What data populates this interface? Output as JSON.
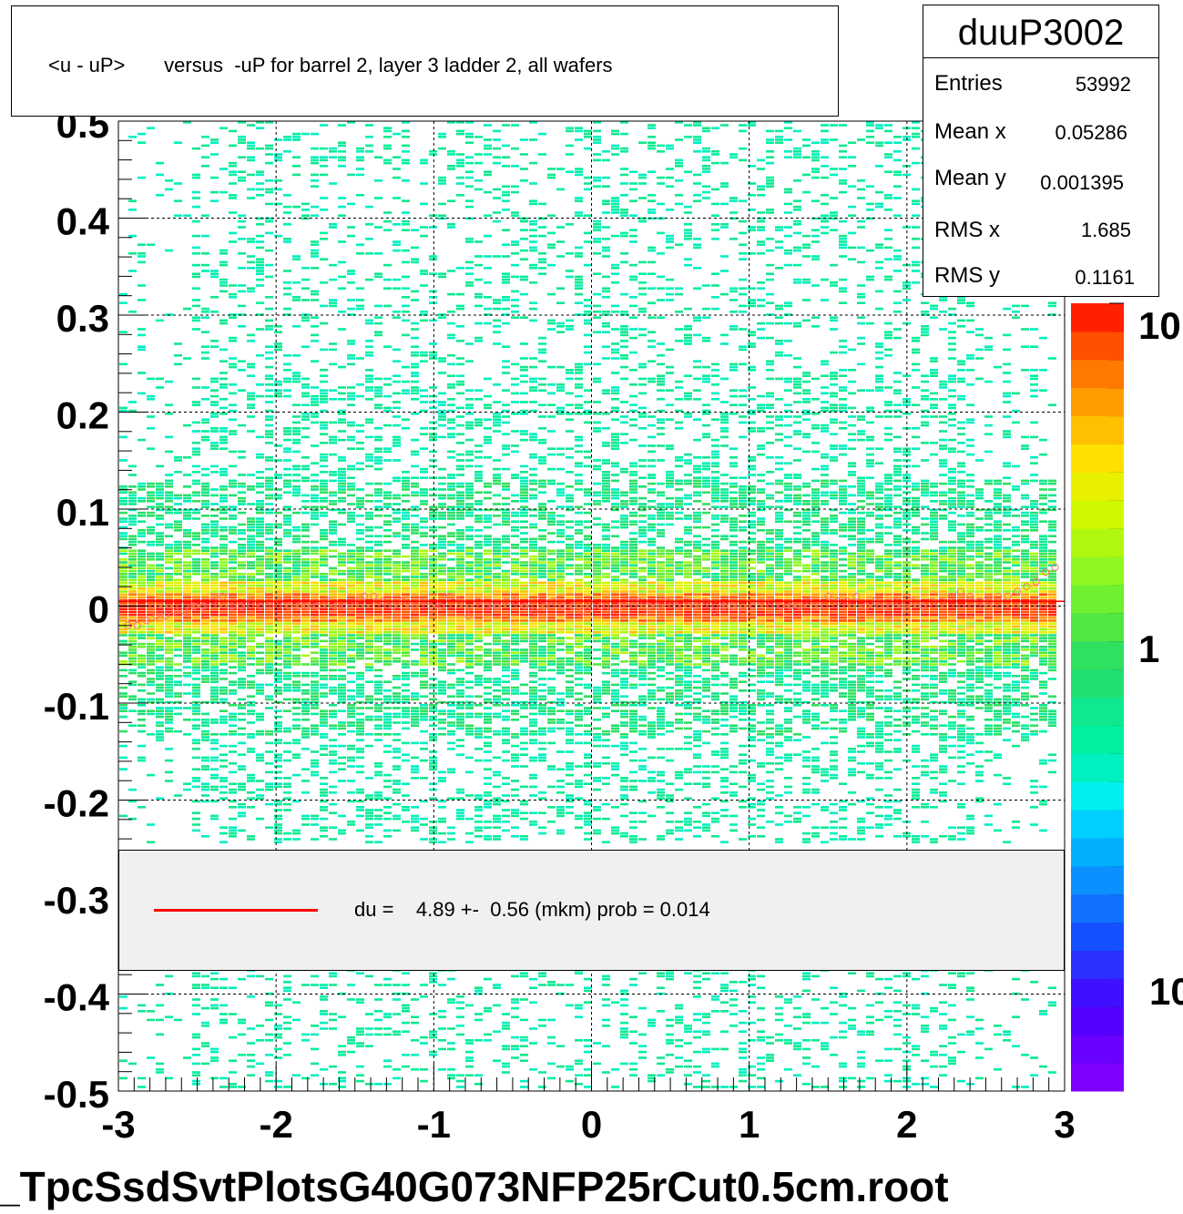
{
  "title": "<u - uP>       versus  -uP for barrel 2, layer 3 ladder 2, all wafers",
  "stats": {
    "name": "duuP3002",
    "rows": [
      {
        "label": "Entries",
        "value": "53992"
      },
      {
        "label": "Mean x",
        "value": "0.05286"
      },
      {
        "label": "Mean y",
        "value": "0.001395"
      },
      {
        "label": "RMS x",
        "value": "1.685"
      },
      {
        "label": "RMS y",
        "value": "0.1161"
      }
    ]
  },
  "legend": {
    "line_color": "#ff0000",
    "text": "du =    4.89 +-  0.56 (mkm) prob = 0.014"
  },
  "footer": "_TpcSsdSvtPlotsG40G073NFP25rCut0.5cm.root",
  "colors": {
    "fit_line": "#ff0000",
    "grid": "#000000",
    "legend_bg": "#f0f0f0",
    "palette": [
      "#7f00ff",
      "#6a00ff",
      "#5500ff",
      "#3f10ff",
      "#2a30ff",
      "#1550ff",
      "#1070ff",
      "#0a90ff",
      "#00b0ff",
      "#00d0ff",
      "#00f0f0",
      "#00f0c0",
      "#00f0a0",
      "#10e890",
      "#20e070",
      "#30e060",
      "#50e840",
      "#70f030",
      "#90f820",
      "#b0f810",
      "#d0f800",
      "#e8f000",
      "#ffe000",
      "#ffc000",
      "#ff9c00",
      "#ff7800",
      "#ff5000",
      "#ff2000"
    ]
  },
  "chart_data": {
    "type": "heatmap",
    "title": "<u - uP>       versus  -uP for barrel 2, layer 3 ladder 2, all wafers",
    "xlim": [
      -3,
      3
    ],
    "ylim": [
      -0.5,
      0.5
    ],
    "xticks": [
      "-3",
      "-2",
      "-1",
      "0",
      "1",
      "2",
      "3"
    ],
    "xtick_values": [
      -3,
      -2,
      -1,
      0,
      1,
      2,
      3
    ],
    "yticks": [
      "-0.5",
      "-0.4",
      "-0.3",
      "-0.2",
      "-0.1",
      "0",
      "0.1",
      "0.2",
      "0.3",
      "0.4",
      "0.5"
    ],
    "ytick_values": [
      -0.5,
      -0.4,
      -0.3,
      -0.2,
      -0.1,
      0,
      0.1,
      0.2,
      0.3,
      0.4,
      0.5
    ],
    "grid": true,
    "colorbar": {
      "scale": "log",
      "labels": [
        "10",
        "1",
        "10"
      ],
      "label_values": [
        10,
        1,
        0.1
      ]
    },
    "band": {
      "center": 0.0,
      "core_halfwidth": 0.015,
      "halo_halfwidth": 0.06
    },
    "profile_points": {
      "x": [
        -2.94,
        -2.88,
        -2.82,
        -2.76,
        -2.7,
        -2.64,
        -2.58,
        -2.52,
        -2.46,
        -2.4,
        -2.34,
        -2.28,
        -2.22,
        -2.16,
        -2.1,
        -2.04,
        -1.98,
        -1.92,
        -1.86,
        -1.8,
        -1.74,
        -1.68,
        -1.62,
        -1.56,
        -1.5,
        -1.44,
        -1.38,
        -1.32,
        -1.26,
        -1.2,
        -1.14,
        -1.08,
        -1.02,
        -0.96,
        -0.9,
        -0.84,
        -0.78,
        -0.72,
        -0.66,
        -0.6,
        -0.54,
        -0.48,
        -0.42,
        -0.36,
        -0.3,
        -0.24,
        -0.18,
        -0.12,
        -0.06,
        0.0,
        0.06,
        0.12,
        0.18,
        0.24,
        0.3,
        0.36,
        0.42,
        0.48,
        0.54,
        0.6,
        0.66,
        0.72,
        0.78,
        0.84,
        0.9,
        0.96,
        1.02,
        1.08,
        1.14,
        1.2,
        1.26,
        1.32,
        1.38,
        1.44,
        1.5,
        1.56,
        1.62,
        1.68,
        1.74,
        1.8,
        1.86,
        1.92,
        1.98,
        2.04,
        2.1,
        2.16,
        2.22,
        2.28,
        2.34,
        2.4,
        2.46,
        2.52,
        2.58,
        2.64,
        2.7,
        2.76,
        2.82,
        2.88,
        2.94
      ],
      "y": [
        -0.02,
        -0.02,
        -0.015,
        -0.01,
        -0.01,
        -0.005,
        -0.005,
        0.0,
        0.0,
        0.005,
        0.01,
        0.0,
        0.0,
        0.005,
        0.0,
        0.0,
        0.005,
        0.0,
        0.0,
        0.0,
        0.0,
        0.005,
        0.0,
        0.0,
        0.005,
        0.01,
        0.01,
        0.005,
        0.0,
        0.005,
        0.0,
        0.005,
        0.0,
        0.0,
        0.01,
        0.005,
        -0.01,
        0.005,
        0.0,
        0.0,
        0.005,
        0.005,
        0.0,
        -0.005,
        0.0,
        0.005,
        0.0,
        0.0,
        -0.005,
        0.0,
        0.0,
        -0.005,
        0.0,
        0.005,
        0.005,
        0.0,
        0.0,
        0.005,
        0.0,
        0.005,
        0.0,
        0.005,
        -0.005,
        0.0,
        0.0,
        -0.005,
        0.0,
        0.005,
        0.005,
        0.0,
        0.0,
        0.0,
        0.005,
        0.0,
        0.01,
        0.005,
        0.005,
        0.01,
        0.0,
        0.005,
        0.0,
        0.005,
        0.0,
        0.005,
        0.0,
        0.005,
        0.005,
        0.01,
        0.015,
        0.01,
        0.005,
        0.005,
        0.01,
        0.01,
        0.015,
        0.02,
        0.025,
        0.035,
        0.04
      ]
    }
  }
}
